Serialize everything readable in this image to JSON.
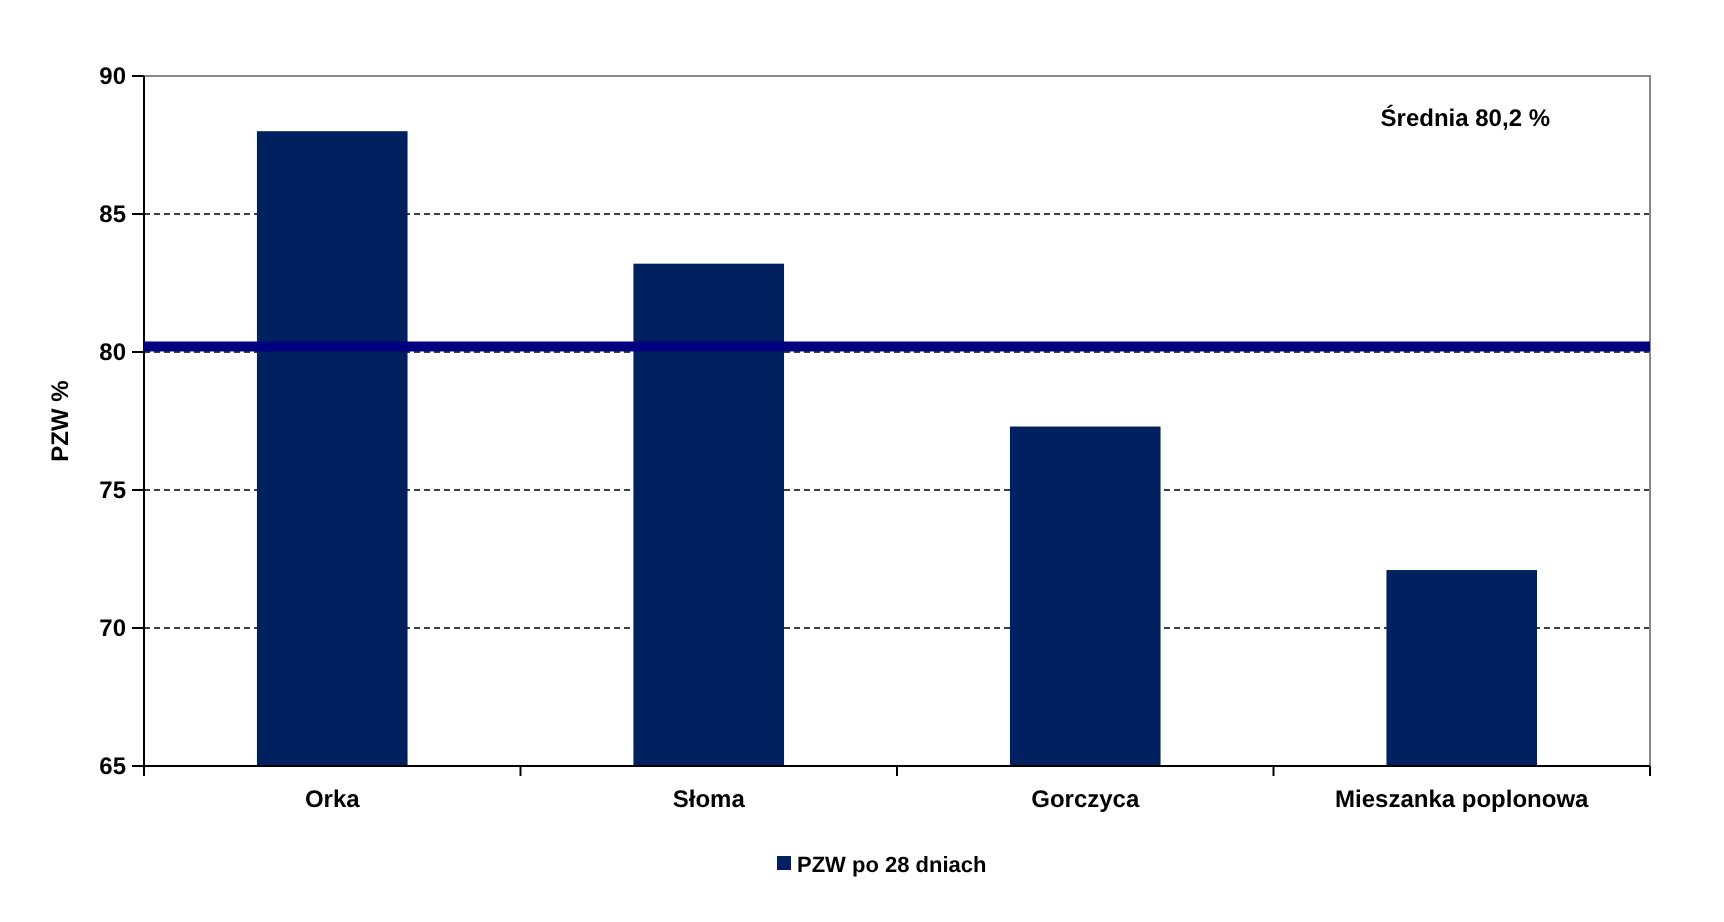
{
  "chart_data": {
    "type": "bar",
    "ylabel": "PZW %",
    "categories": [
      "Orka",
      "Słoma",
      "Gorczyca",
      "Mieszanka poplonowa"
    ],
    "series": [
      {
        "name": "PZW po 28 dniach",
        "color": "#002060",
        "values": [
          88.0,
          83.2,
          77.3,
          72.1
        ]
      }
    ],
    "ylim": [
      65,
      90
    ],
    "yticks": [
      65,
      70,
      75,
      80,
      85,
      90
    ],
    "grid": "y",
    "legend": "bottom",
    "annotations": [
      "Średnia 80,2 %"
    ],
    "ref_lines": [
      {
        "axis": "y",
        "value": 80.2,
        "color": "#000080"
      }
    ]
  }
}
